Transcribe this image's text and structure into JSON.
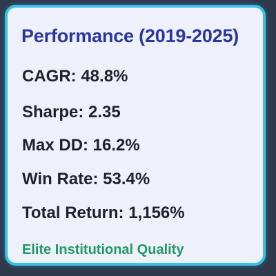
{
  "card": {
    "title": "Performance (2019-2025)",
    "metrics": [
      {
        "text": "CAGR: 48.8%"
      },
      {
        "text": "Sharpe: 2.35"
      },
      {
        "text": "Max DD: 16.2%"
      },
      {
        "text": "Win Rate: 53.4%"
      },
      {
        "text": "Total Return: 1,156%"
      }
    ],
    "quality_label": "Elite Institutional Quality"
  },
  "colors": {
    "border": "#36c2e8",
    "title": "#2a36a0",
    "text": "#1f2228",
    "quality": "#1f9a63",
    "card_bg": "#eef1fb"
  }
}
